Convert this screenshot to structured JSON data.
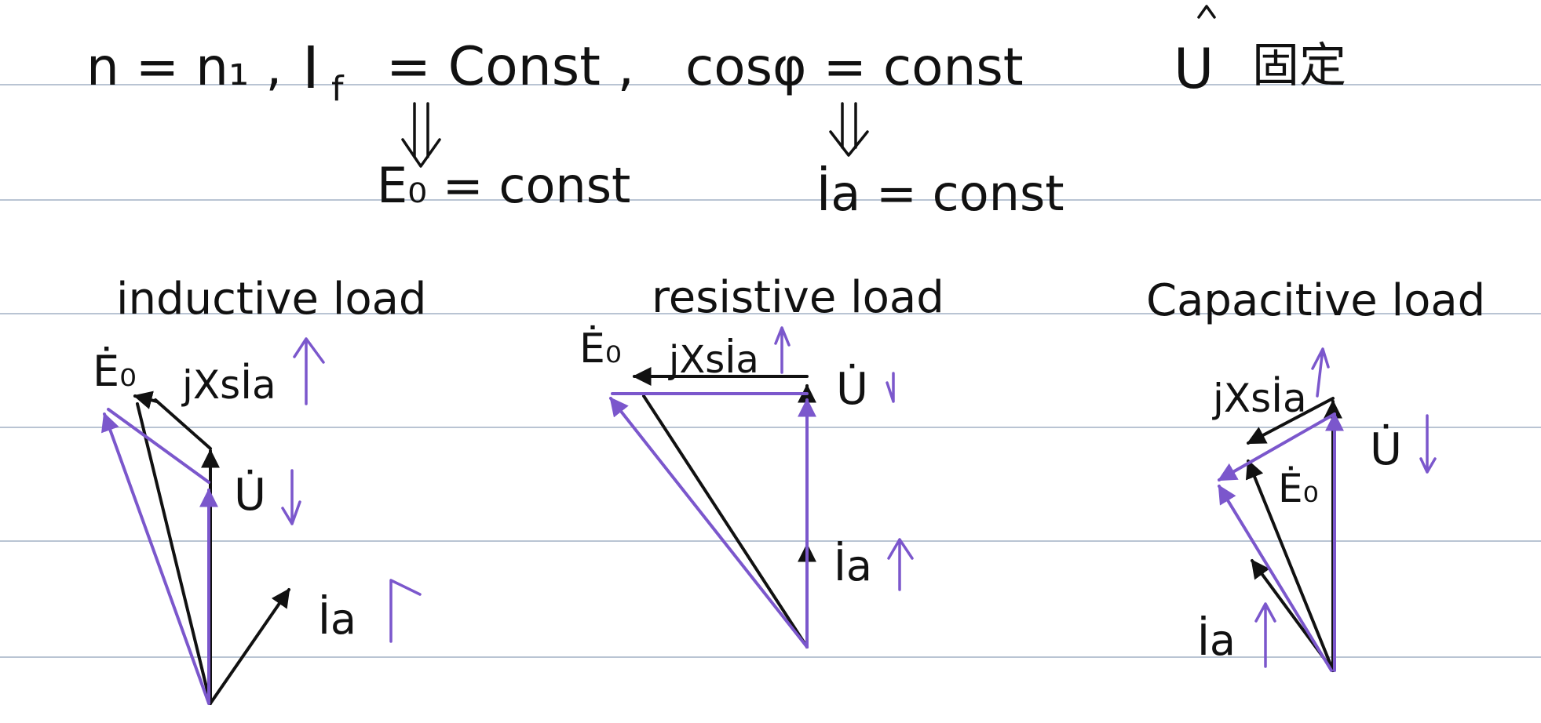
{
  "header": {
    "condition_speed": "n = n₁ ,",
    "condition_field": "I",
    "condition_field_sub": "f",
    "condition_field_rhs": "= Const ,",
    "condition_pf": "cosφ = const",
    "condition_voltage_symbol": "U",
    "condition_voltage_note": "固定",
    "result_emf": "E₀ = const",
    "result_current": "İa = const"
  },
  "panels": {
    "inductive": {
      "title": "inductive load",
      "label_e0": "Ė₀",
      "label_jxs": "jXsİa",
      "label_u": "U̇",
      "label_ia": "İa"
    },
    "resistive": {
      "title": "resistive load",
      "label_e0": "Ė₀",
      "label_jxs": "jXsİa",
      "label_u": "U̇",
      "label_ia": "İa"
    },
    "capacitive": {
      "title": "Capacitive load",
      "label_e0": "Ė₀",
      "label_jxs": "jXsİa",
      "label_u": "U̇",
      "label_ia": "İa"
    }
  },
  "colors": {
    "ink": "#111111",
    "highlight": "#7b57cc",
    "rule": "#b9c4d3"
  }
}
